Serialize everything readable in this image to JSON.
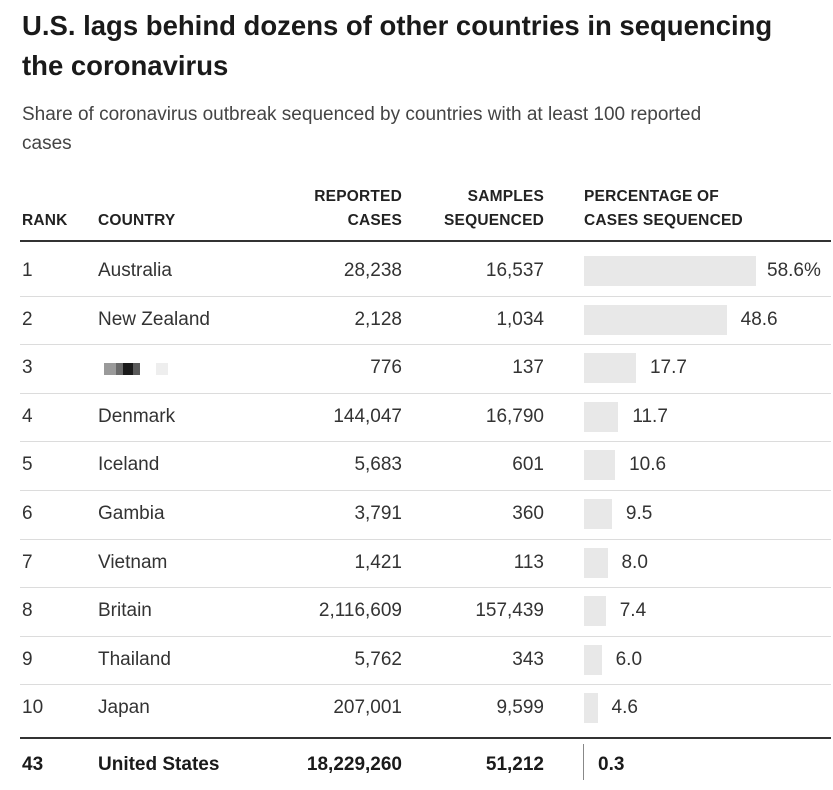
{
  "title": "U.S. lags behind dozens of other countries in sequencing the coronavirus",
  "subtitle": "Share of coronavirus outbreak sequenced by countries with at least 100 reported cases",
  "headers": {
    "rank": "RANK",
    "country": "COUNTRY",
    "cases_1": "REPORTED",
    "cases_2": "CASES",
    "samples_1": "SAMPLES",
    "samples_2": "SEQUENCED",
    "pct_1": "PERCENTAGE OF",
    "pct_2": "CASES SEQUENCED"
  },
  "colors": {
    "bar": "#e8e8e8",
    "rule": "#333333",
    "row_rule": "#dcdcdc"
  },
  "chart_data": {
    "type": "table",
    "title": "U.S. lags behind dozens of other countries in sequencing the coronavirus",
    "subtitle": "Share of coronavirus outbreak sequenced by countries with at least 100 reported cases",
    "columns": [
      "RANK",
      "COUNTRY",
      "REPORTED CASES",
      "SAMPLES SEQUENCED",
      "PERCENTAGE OF CASES SEQUENCED"
    ],
    "pct_max": 58.6,
    "rows": [
      {
        "rank": "1",
        "country": "Australia",
        "cases": "28,238",
        "samples": "16,537",
        "pct": 58.6,
        "pct_label": "58.6%"
      },
      {
        "rank": "2",
        "country": "New Zealand",
        "cases": "2,128",
        "samples": "1,034",
        "pct": 48.6,
        "pct_label": "48.6"
      },
      {
        "rank": "3",
        "country": "",
        "redacted": true,
        "cases": "776",
        "samples": "137",
        "pct": 17.7,
        "pct_label": "17.7"
      },
      {
        "rank": "4",
        "country": "Denmark",
        "cases": "144,047",
        "samples": "16,790",
        "pct": 11.7,
        "pct_label": "11.7"
      },
      {
        "rank": "5",
        "country": "Iceland",
        "cases": "5,683",
        "samples": "601",
        "pct": 10.6,
        "pct_label": "10.6"
      },
      {
        "rank": "6",
        "country": "Gambia",
        "cases": "3,791",
        "samples": "360",
        "pct": 9.5,
        "pct_label": "9.5"
      },
      {
        "rank": "7",
        "country": "Vietnam",
        "cases": "1,421",
        "samples": "113",
        "pct": 8.0,
        "pct_label": "8.0"
      },
      {
        "rank": "8",
        "country": "Britain",
        "cases": "2,116,609",
        "samples": "157,439",
        "pct": 7.4,
        "pct_label": "7.4"
      },
      {
        "rank": "9",
        "country": "Thailand",
        "cases": "5,762",
        "samples": "343",
        "pct": 6.0,
        "pct_label": "6.0"
      },
      {
        "rank": "10",
        "country": "Japan",
        "cases": "207,001",
        "samples": "9,599",
        "pct": 4.6,
        "pct_label": "4.6"
      }
    ],
    "highlight_row": {
      "rank": "43",
      "country": "United States",
      "cases": "18,229,260",
      "samples": "51,212",
      "pct": 0.3,
      "pct_label": "0.3"
    }
  }
}
